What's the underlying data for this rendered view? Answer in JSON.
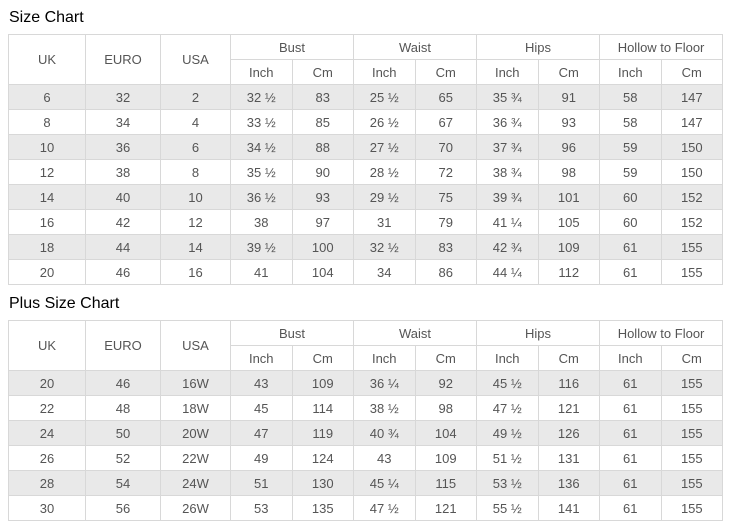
{
  "colors": {
    "stripe_row_bg": "#e9e9e9",
    "border": "#d8d8d8",
    "cell_text": "#555555",
    "title_text": "#000000",
    "page_bg": "#ffffff"
  },
  "tables": [
    {
      "title": "Size Chart",
      "headers": {
        "uk": "UK",
        "euro": "EURO",
        "usa": "USA"
      },
      "groups": [
        "Bust",
        "Waist",
        "Hips",
        "Hollow to Floor"
      ],
      "sub": [
        "Inch",
        "Cm"
      ],
      "rows": [
        [
          "6",
          "32",
          "2",
          "32 ½",
          "83",
          "25 ½",
          "65",
          "35 ¾",
          "91",
          "58",
          "147"
        ],
        [
          "8",
          "34",
          "4",
          "33 ½",
          "85",
          "26 ½",
          "67",
          "36 ¾",
          "93",
          "58",
          "147"
        ],
        [
          "10",
          "36",
          "6",
          "34 ½",
          "88",
          "27 ½",
          "70",
          "37 ¾",
          "96",
          "59",
          "150"
        ],
        [
          "12",
          "38",
          "8",
          "35 ½",
          "90",
          "28 ½",
          "72",
          "38 ¾",
          "98",
          "59",
          "150"
        ],
        [
          "14",
          "40",
          "10",
          "36 ½",
          "93",
          "29 ½",
          "75",
          "39 ¾",
          "101",
          "60",
          "152"
        ],
        [
          "16",
          "42",
          "12",
          "38",
          "97",
          "31",
          "79",
          "41 ¼",
          "105",
          "60",
          "152"
        ],
        [
          "18",
          "44",
          "14",
          "39 ½",
          "100",
          "32 ½",
          "83",
          "42 ¾",
          "109",
          "61",
          "155"
        ],
        [
          "20",
          "46",
          "16",
          "41",
          "104",
          "34",
          "86",
          "44 ¼",
          "112",
          "61",
          "155"
        ]
      ]
    },
    {
      "title": "Plus Size Chart",
      "headers": {
        "uk": "UK",
        "euro": "EURO",
        "usa": "USA"
      },
      "groups": [
        "Bust",
        "Waist",
        "Hips",
        "Hollow to Floor"
      ],
      "sub": [
        "Inch",
        "Cm"
      ],
      "rows": [
        [
          "20",
          "46",
          "16W",
          "43",
          "109",
          "36 ¼",
          "92",
          "45 ½",
          "116",
          "61",
          "155"
        ],
        [
          "22",
          "48",
          "18W",
          "45",
          "114",
          "38 ½",
          "98",
          "47 ½",
          "121",
          "61",
          "155"
        ],
        [
          "24",
          "50",
          "20W",
          "47",
          "119",
          "40 ¾",
          "104",
          "49 ½",
          "126",
          "61",
          "155"
        ],
        [
          "26",
          "52",
          "22W",
          "49",
          "124",
          "43",
          "109",
          "51 ½",
          "131",
          "61",
          "155"
        ],
        [
          "28",
          "54",
          "24W",
          "51",
          "130",
          "45 ¼",
          "115",
          "53 ½",
          "136",
          "61",
          "155"
        ],
        [
          "30",
          "56",
          "26W",
          "53",
          "135",
          "47 ½",
          "121",
          "55 ½",
          "141",
          "61",
          "155"
        ]
      ]
    }
  ]
}
